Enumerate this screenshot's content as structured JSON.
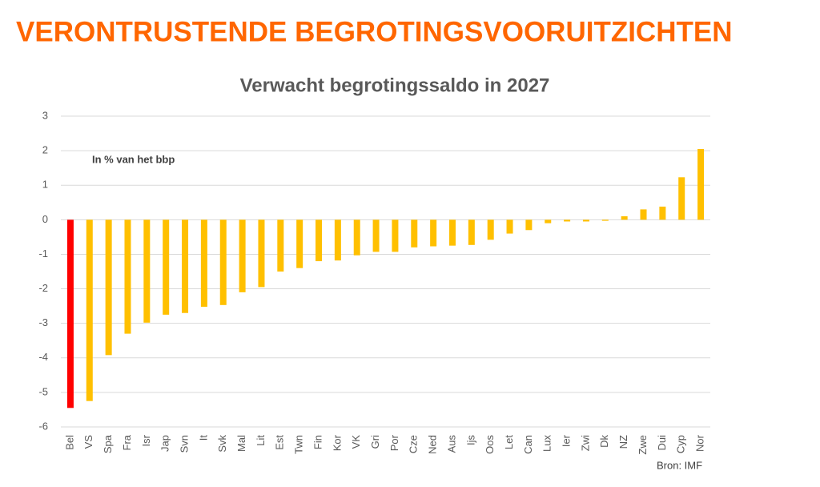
{
  "heading": "VERONTRUSTENDE BEGROTINGSVOORUITZICHTEN",
  "chart_data": {
    "type": "bar",
    "title": "Verwacht begrotingssaldo in 2027",
    "annotation": "In % van het bbp",
    "source": "Bron: IMF",
    "categories": [
      "Bel",
      "VS",
      "Spa",
      "Fra",
      "Isr",
      "Jap",
      "Svn",
      "It",
      "Svk",
      "Mal",
      "Lit",
      "Est",
      "Twn",
      "Fin",
      "Kor",
      "VK",
      "Gri",
      "Por",
      "Cze",
      "Ned",
      "Aus",
      "Ijs",
      "Oos",
      "Let",
      "Can",
      "Lux",
      "Ier",
      "Zwi",
      "Dk",
      "NZ",
      "Zwe",
      "Dui",
      "Cyp",
      "Nor"
    ],
    "values": [
      -5.45,
      -5.25,
      -3.92,
      -3.3,
      -2.98,
      -2.75,
      -2.7,
      -2.52,
      -2.47,
      -2.1,
      -1.95,
      -1.5,
      -1.4,
      -1.2,
      -1.18,
      -1.03,
      -0.93,
      -0.93,
      -0.8,
      -0.77,
      -0.75,
      -0.73,
      -0.58,
      -0.4,
      -0.3,
      -0.1,
      -0.05,
      -0.05,
      -0.03,
      0.1,
      0.3,
      0.38,
      1.23,
      2.05
    ],
    "colors": [
      "#ff0000",
      "#ffc000",
      "#ffc000",
      "#ffc000",
      "#ffc000",
      "#ffc000",
      "#ffc000",
      "#ffc000",
      "#ffc000",
      "#ffc000",
      "#ffc000",
      "#ffc000",
      "#ffc000",
      "#ffc000",
      "#ffc000",
      "#ffc000",
      "#ffc000",
      "#ffc000",
      "#ffc000",
      "#ffc000",
      "#ffc000",
      "#ffc000",
      "#ffc000",
      "#ffc000",
      "#ffc000",
      "#ffc000",
      "#ffc000",
      "#ffc000",
      "#ffc000",
      "#ffc000",
      "#ffc000",
      "#ffc000",
      "#ffc000",
      "#ffc000"
    ],
    "ylim": [
      -6,
      3
    ],
    "yticks": [
      -6,
      -5,
      -4,
      -3,
      -2,
      -1,
      0,
      1,
      2,
      3
    ],
    "grid": true
  }
}
